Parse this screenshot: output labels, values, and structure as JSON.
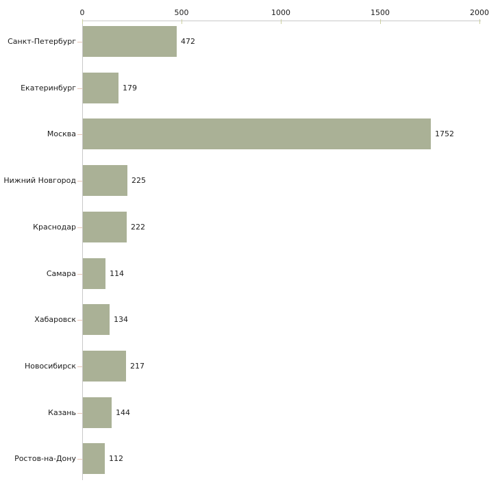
{
  "chart_data": {
    "type": "bar",
    "orientation": "horizontal",
    "categories": [
      "Санкт-Петербург",
      "Екатеринбург",
      "Москва",
      "Нижний Новгород",
      "Краснодар",
      "Самара",
      "Хабаровск",
      "Новосибирск",
      "Казань",
      "Ростов-на-Дону"
    ],
    "values": [
      472,
      179,
      1752,
      225,
      222,
      114,
      134,
      217,
      144,
      112
    ],
    "x_tick_values": [
      0,
      500,
      1000,
      1500,
      2000
    ],
    "xlim": [
      0,
      2000
    ],
    "value_labels_shown": true,
    "grid": false,
    "legend": false,
    "colors": {
      "background": "#ffffff",
      "bar_fill": "#aab196",
      "axis_line": "#c8c8c8",
      "x_tick_mark": "#ccd0a0",
      "y_tick_mark": "#e6c3b3",
      "text": "#1a1a1a"
    }
  }
}
